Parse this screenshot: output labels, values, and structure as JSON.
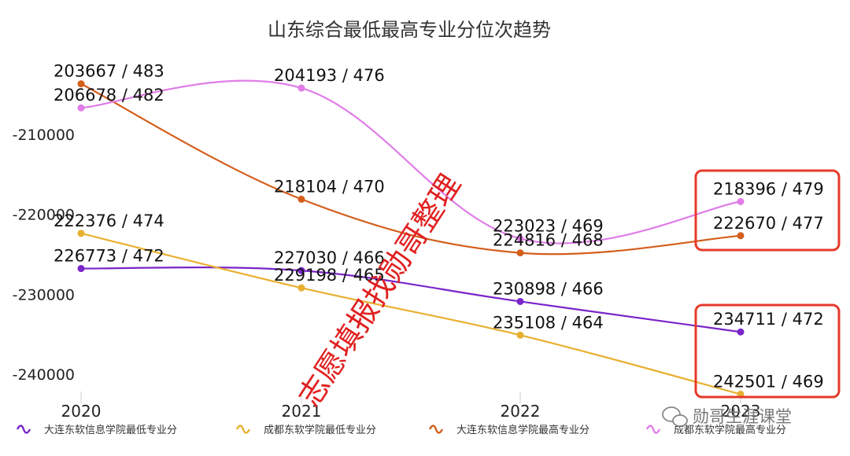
{
  "chart_data": {
    "type": "line",
    "title": "山东综合最低最高专业分位次趋势",
    "categories": [
      "2020",
      "2021",
      "2022",
      "2023"
    ],
    "ylim": [
      -245000,
      -200000
    ],
    "yticks": [
      -210000,
      -220000,
      -230000,
      -240000
    ],
    "ytick_labels": [
      "-210000",
      "-220000",
      "-230000",
      "-240000"
    ],
    "series": [
      {
        "name": "大连东软信息学院最低专业分",
        "color": "#7a25c9",
        "values": [
          -226773,
          -227030,
          -230898,
          -234711
        ],
        "labels": [
          "226773 / 472",
          "227030 / 466",
          "230898 / 466",
          "234711 / 472"
        ]
      },
      {
        "name": "成都东软学院最低专业分",
        "color": "#e8b030",
        "values": [
          -222376,
          -229198,
          -235108,
          -242501
        ],
        "labels": [
          "222376 / 474",
          "229198 / 465",
          "235108 / 464",
          "242501 / 469"
        ]
      },
      {
        "name": "大连东软信息学院最高专业分",
        "color": "#d45e1b",
        "values": [
          -203667,
          -218104,
          -224816,
          -222670
        ],
        "labels": [
          "203667 / 483",
          "218104 / 470",
          "224816 / 468",
          "222670 / 477"
        ]
      },
      {
        "name": "成都东软学院最高专业分",
        "color": "#e07de8",
        "values": [
          -206678,
          -204193,
          -223023,
          -218396
        ],
        "labels": [
          "206678 / 482",
          "204193 / 476",
          "223023 / 469",
          "218396 / 479"
        ]
      }
    ],
    "legend_position": "bottom"
  },
  "watermark": "志愿填报找勋哥整理",
  "logo": "勋哥生涯课堂",
  "highlight_color": "#e53a2a"
}
